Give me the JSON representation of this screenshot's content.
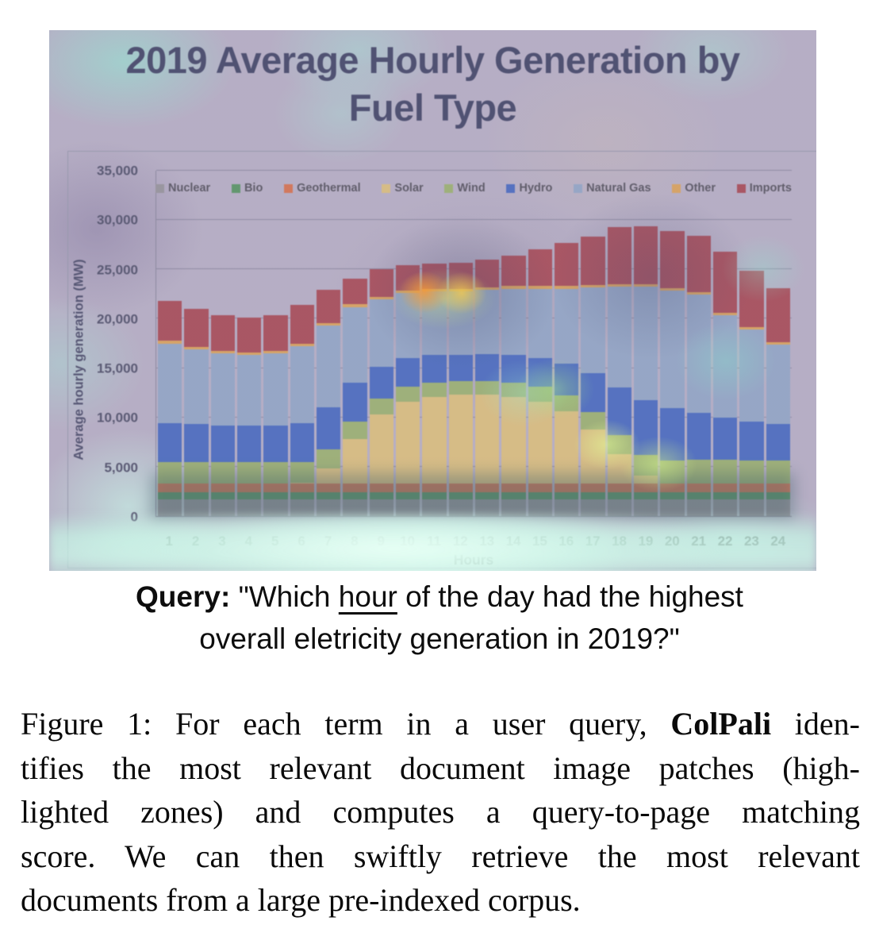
{
  "figure": {
    "chart_title_line1": "2019 Average Hourly Generation by",
    "chart_title_line2": "Fuel Type"
  },
  "chart_data": {
    "type": "bar",
    "stacked": true,
    "title": "2019 Average Hourly Generation by Fuel Type",
    "xlabel": "Hours",
    "ylabel": "Average hourly generation (MW)",
    "ylim": [
      0,
      35000
    ],
    "ytick_step": 5000,
    "grid": true,
    "legend_position": "top-inside",
    "categories": [
      1,
      2,
      3,
      4,
      5,
      6,
      7,
      8,
      9,
      10,
      11,
      12,
      13,
      14,
      15,
      16,
      17,
      18,
      19,
      20,
      21,
      22,
      23,
      24
    ],
    "series": [
      {
        "name": "Nuclear",
        "color": "#8f8f8f",
        "values": [
          1700,
          1700,
          1700,
          1700,
          1700,
          1700,
          1700,
          1700,
          1700,
          1700,
          1700,
          1700,
          1700,
          1700,
          1700,
          1700,
          1700,
          1700,
          1700,
          1700,
          1700,
          1700,
          1700,
          1700
        ]
      },
      {
        "name": "Bio",
        "color": "#3f9148",
        "values": [
          700,
          700,
          700,
          700,
          700,
          700,
          700,
          700,
          700,
          700,
          700,
          700,
          700,
          700,
          700,
          700,
          700,
          700,
          700,
          700,
          700,
          700,
          700,
          700
        ]
      },
      {
        "name": "Geothermal",
        "color": "#e2642e",
        "values": [
          900,
          900,
          900,
          900,
          900,
          900,
          900,
          900,
          900,
          900,
          900,
          900,
          900,
          900,
          900,
          900,
          900,
          900,
          900,
          900,
          900,
          900,
          900,
          900
        ]
      },
      {
        "name": "Solar",
        "color": "#e9c76a",
        "values": [
          0,
          0,
          0,
          0,
          0,
          100,
          1500,
          4500,
          7000,
          8300,
          8800,
          9000,
          9000,
          8800,
          8300,
          7300,
          5500,
          3000,
          800,
          0,
          0,
          0,
          0,
          0
        ]
      },
      {
        "name": "Wind",
        "color": "#97b559",
        "values": [
          2200,
          2200,
          2200,
          2150,
          2150,
          2100,
          2000,
          1800,
          1600,
          1500,
          1450,
          1400,
          1400,
          1450,
          1500,
          1600,
          1750,
          1900,
          2100,
          2300,
          2400,
          2400,
          2350,
          2300
        ]
      },
      {
        "name": "Hydro",
        "color": "#2c5bbf",
        "values": [
          3900,
          3800,
          3700,
          3700,
          3750,
          3900,
          4200,
          3900,
          3200,
          2900,
          2750,
          2650,
          2700,
          2800,
          2950,
          3250,
          3950,
          4850,
          5550,
          5350,
          4750,
          4250,
          3950,
          3750
        ]
      },
      {
        "name": "Natural Gas",
        "color": "#8ba7c7",
        "values": [
          8100,
          7600,
          7300,
          7200,
          7300,
          7800,
          8300,
          7700,
          6900,
          6600,
          6500,
          6450,
          6500,
          6700,
          7000,
          7600,
          8700,
          10200,
          11500,
          11900,
          12000,
          10400,
          9300,
          8000
        ]
      },
      {
        "name": "Other",
        "color": "#e8a33d",
        "values": [
          250,
          250,
          250,
          250,
          250,
          250,
          250,
          250,
          250,
          250,
          250,
          250,
          250,
          250,
          250,
          250,
          250,
          250,
          250,
          250,
          250,
          250,
          250,
          250
        ]
      },
      {
        "name": "Imports",
        "color": "#a73238",
        "values": [
          4050,
          3850,
          3650,
          3500,
          3650,
          3950,
          3350,
          2650,
          2750,
          2550,
          2550,
          2650,
          2850,
          3100,
          3700,
          4400,
          4850,
          5800,
          5900,
          5800,
          5700,
          6200,
          5750,
          5500
        ]
      }
    ]
  },
  "query": {
    "segments": [
      {
        "t": "Query:",
        "b": true
      },
      {
        "t": " \"Which "
      },
      {
        "t": "hour",
        "u": true
      },
      {
        "t": " of the day had the highest"
      },
      {
        "br": true
      },
      {
        "t": "overall eletricity generation in 2019?\""
      }
    ]
  },
  "caption": {
    "lines": [
      [
        {
          "t": "Figure 1: For each term in a user query, "
        },
        {
          "t": "ColPali",
          "b": true
        },
        {
          "t": " iden-"
        }
      ],
      [
        {
          "t": "tifies the most relevant document image patches (high-"
        }
      ],
      [
        {
          "t": "lighted zones) and computes a query-to-page matching"
        }
      ],
      [
        {
          "t": "score.  We can then swiftly retrieve the most relevant"
        }
      ],
      [
        {
          "t": "documents from a large pre-indexed corpus."
        }
      ]
    ]
  }
}
